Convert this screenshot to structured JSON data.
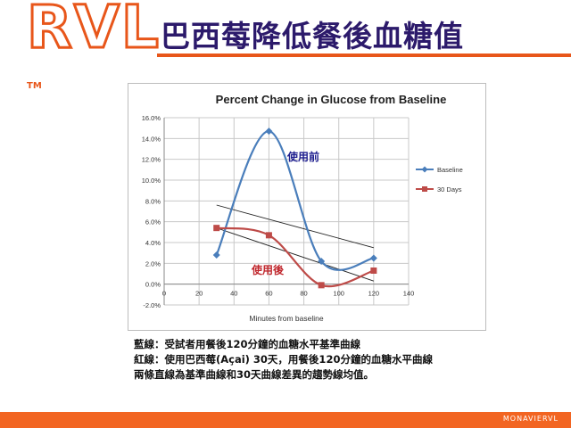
{
  "header": {
    "logo": "RVL",
    "trademark": "TM",
    "title": "巴西莓降低餐後血糖值"
  },
  "chart_data": {
    "type": "line",
    "title": "Percent Change in Glucose from Baseline",
    "xlabel": "Minutes from baseline",
    "ylabel": "",
    "xlim": [
      0,
      140
    ],
    "ylim": [
      -2.0,
      16.0
    ],
    "x_ticks": [
      "0",
      "20",
      "40",
      "60",
      "80",
      "100",
      "120",
      "140"
    ],
    "y_ticks": [
      "-2.0%",
      "0.0%",
      "2.0%",
      "4.0%",
      "6.0%",
      "8.0%",
      "10.0%",
      "12.0%",
      "14.0%",
      "16.0%"
    ],
    "grid": true,
    "legend_position": "right",
    "series": [
      {
        "name": "Baseline",
        "x": [
          30,
          60,
          90,
          120
        ],
        "values": [
          2.8,
          14.7,
          2.2,
          2.5
        ],
        "color": "#4a7ebb",
        "marker": "diamond"
      },
      {
        "name": "30 Days",
        "x": [
          30,
          60,
          90,
          120
        ],
        "values": [
          5.4,
          4.7,
          -0.1,
          1.3
        ],
        "color": "#be4b48",
        "marker": "square"
      }
    ],
    "trendlines": [
      {
        "x": [
          30,
          120
        ],
        "values": [
          7.6,
          3.5
        ]
      },
      {
        "x": [
          30,
          120
        ],
        "values": [
          5.4,
          0.3
        ]
      }
    ],
    "annotations": [
      {
        "text": "使用前",
        "color": "#1f1f8f"
      },
      {
        "text": "使用後",
        "color": "#c0272d"
      }
    ]
  },
  "caption": [
    "藍線：受試者用餐後120分鐘的血糖水平基準曲線",
    "紅線：使用巴西莓(Açai) 30天，用餐後120分鐘的血糖水平曲線",
    "兩條直線為基準曲線和30天曲線差異的趨勢線均值。"
  ],
  "footer": {
    "brand": "MONAVIERVL",
    "color": "#f26522"
  }
}
